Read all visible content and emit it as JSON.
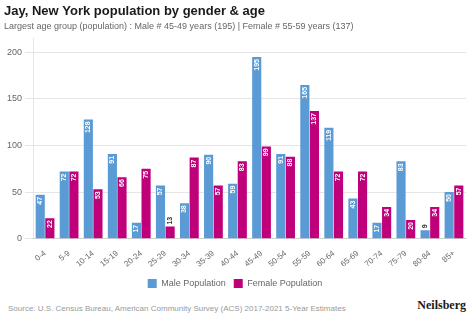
{
  "chart_data": {
    "type": "bar",
    "title": "Jay, New York population by gender & age",
    "subtitle": "Largest age group (population) : Male # 45-49 years (195) | Female # 55-59 years (137)",
    "annotations": [
      "Source: U.S. Census Bureau, American Community Survey (ACS) 2017-2021 5-Year Estimates",
      "Neilsberg"
    ],
    "categories": [
      "0-4",
      "5-9",
      "10-14",
      "15-19",
      "20-24",
      "25-29",
      "30-34",
      "35-39",
      "40-44",
      "45-49",
      "50-54",
      "55-59",
      "60-64",
      "65-69",
      "70-74",
      "75-79",
      "80-84",
      "85+"
    ],
    "series": [
      {
        "name": "Male Population",
        "color": "#5B9BD5",
        "values": [
          47,
          72,
          128,
          91,
          17,
          57,
          38,
          90,
          59,
          195,
          91,
          165,
          119,
          43,
          17,
          83,
          9,
          50
        ]
      },
      {
        "name": "Female Population",
        "color": "#C0007A",
        "values": [
          22,
          72,
          53,
          66,
          75,
          13,
          87,
          57,
          83,
          99,
          88,
          137,
          72,
          72,
          34,
          20,
          34,
          57
        ]
      }
    ],
    "ylim": [
      0,
      215
    ],
    "yticks": [
      0,
      50,
      100,
      150,
      200
    ],
    "grid": true,
    "legend": "bottom",
    "data_labels": true
  }
}
